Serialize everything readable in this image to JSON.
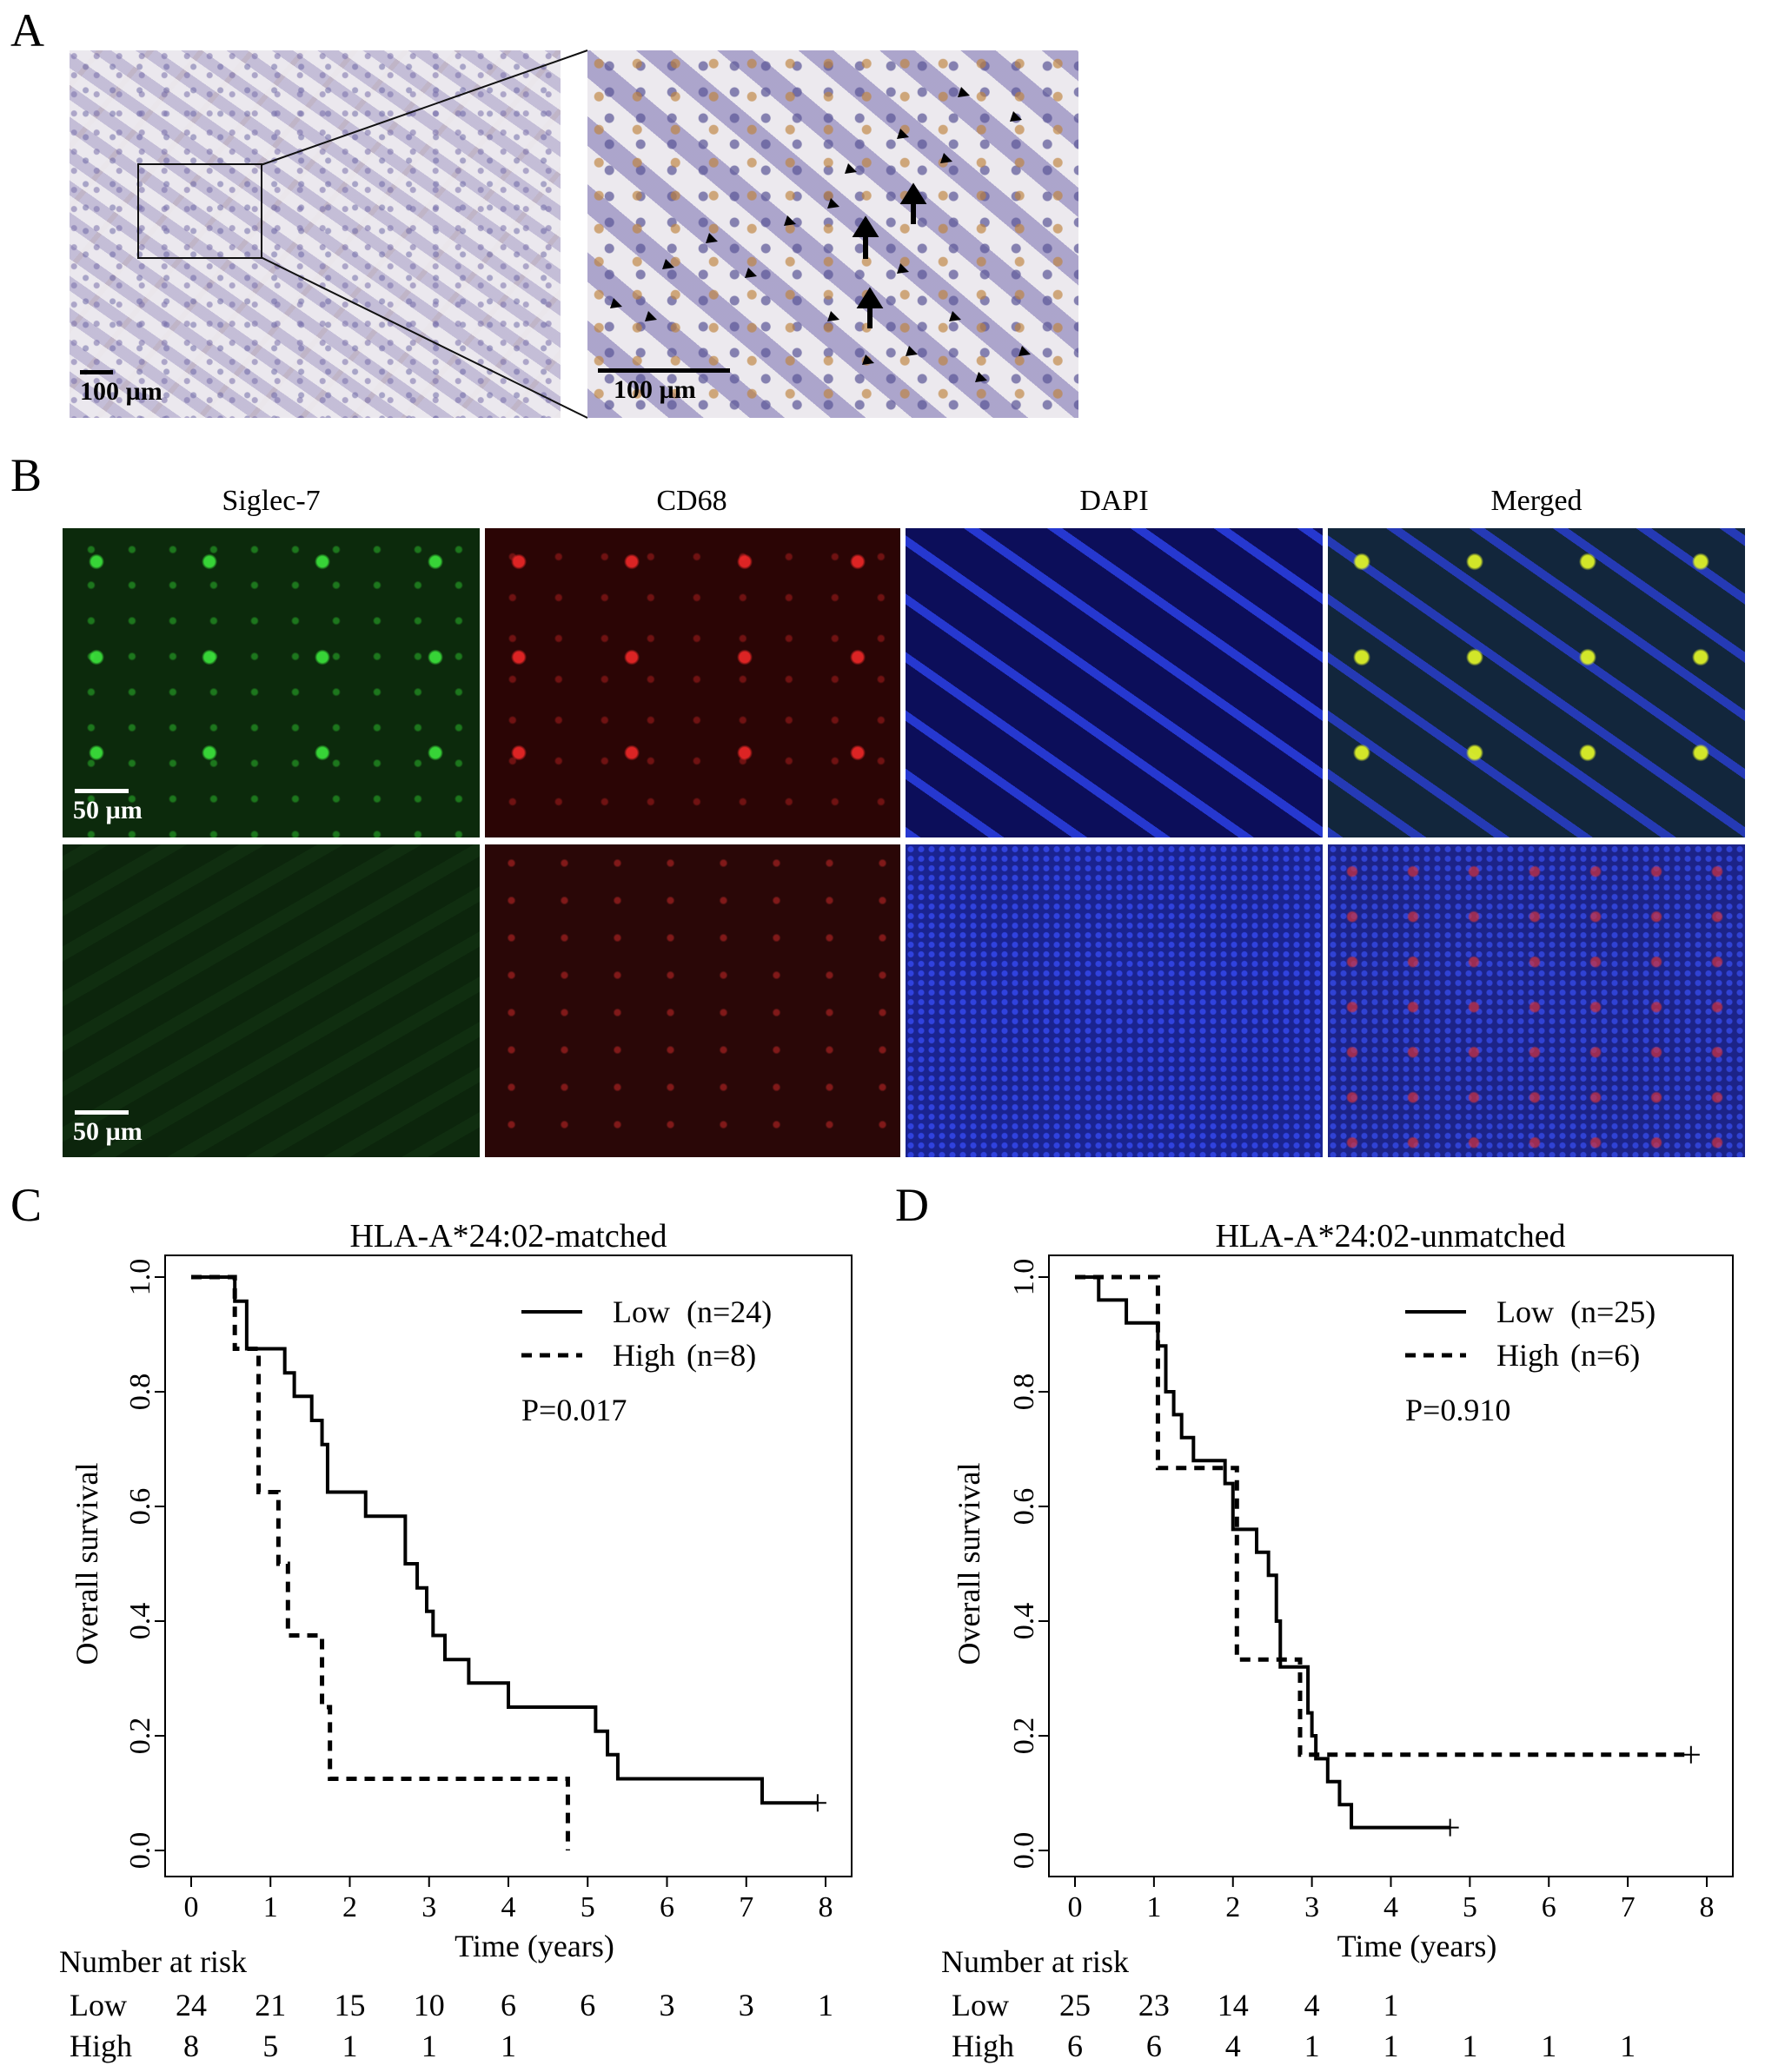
{
  "panels": {
    "a": {
      "letter": "A",
      "scale_left": "100 µm",
      "scale_right": "100 µm"
    },
    "b": {
      "letter": "B",
      "columns": [
        "Siglec-7",
        "CD68",
        "DAPI",
        "Merged"
      ],
      "scale_top": "50 µm",
      "scale_bottom": "50 µm"
    }
  },
  "chart_data": [
    {
      "panel": "C",
      "type": "line",
      "title": "HLA-A*24:02-matched",
      "xlabel": "Time (years)",
      "ylabel": "Overall survival",
      "xlim": [
        0,
        8
      ],
      "ylim": [
        0,
        1
      ],
      "xticks": [
        "0",
        "1",
        "2",
        "3",
        "4",
        "5",
        "6",
        "7",
        "8"
      ],
      "yticks": [
        "0.0",
        "0.2",
        "0.4",
        "0.6",
        "0.8",
        "1.0"
      ],
      "pvalue": "P=0.017",
      "series": [
        {
          "name": "Low",
          "legend_n": "(n=24)",
          "style": "solid",
          "x": [
            0,
            0.55,
            0.7,
            1.18,
            1.3,
            1.52,
            1.65,
            1.72,
            2.2,
            2.7,
            2.85,
            2.97,
            3.05,
            3.2,
            3.5,
            4.0,
            5.1,
            5.25,
            5.38,
            7.2,
            7.9
          ],
          "y": [
            1.0,
            0.958,
            0.875,
            0.833,
            0.792,
            0.75,
            0.708,
            0.625,
            0.583,
            0.5,
            0.458,
            0.417,
            0.375,
            0.333,
            0.292,
            0.25,
            0.208,
            0.167,
            0.125,
            0.083,
            0.083
          ],
          "censor": [
            {
              "x": 7.9,
              "y": 0.083
            }
          ]
        },
        {
          "name": "High",
          "legend_n": "(n=8)",
          "style": "dashed",
          "x": [
            0,
            0.55,
            0.62,
            0.85,
            1.1,
            1.22,
            1.65,
            1.75,
            4.75
          ],
          "y": [
            1.0,
            0.875,
            0.875,
            0.625,
            0.5,
            0.375,
            0.25,
            0.125,
            0.0
          ]
        }
      ],
      "risk_table": {
        "header": "Number at risk",
        "times": [
          0,
          1,
          2,
          3,
          4,
          5,
          6,
          7,
          8
        ],
        "rows": [
          {
            "label": "Low",
            "values": [
              "24",
              "21",
              "15",
              "10",
              "6",
              "6",
              "3",
              "3",
              "1"
            ]
          },
          {
            "label": "High",
            "values": [
              "8",
              "5",
              "1",
              "1",
              "1"
            ]
          }
        ]
      }
    },
    {
      "panel": "D",
      "type": "line",
      "title": "HLA-A*24:02-unmatched",
      "xlabel": "Time (years)",
      "ylabel": "Overall survival",
      "xlim": [
        0,
        8
      ],
      "ylim": [
        0,
        1
      ],
      "xticks": [
        "0",
        "1",
        "2",
        "3",
        "4",
        "5",
        "6",
        "7",
        "8"
      ],
      "yticks": [
        "0.0",
        "0.2",
        "0.4",
        "0.6",
        "0.8",
        "1.0"
      ],
      "pvalue": "P=0.910",
      "series": [
        {
          "name": "Low",
          "legend_n": "(n=25)",
          "style": "solid",
          "x": [
            0,
            0.3,
            0.65,
            1.05,
            1.15,
            1.25,
            1.35,
            1.5,
            1.9,
            2.0,
            2.1,
            2.3,
            2.45,
            2.55,
            2.6,
            2.95,
            3.0,
            3.05,
            3.2,
            3.35,
            3.5,
            4.75
          ],
          "y": [
            1.0,
            0.96,
            0.92,
            0.88,
            0.8,
            0.76,
            0.72,
            0.68,
            0.64,
            0.56,
            0.56,
            0.52,
            0.48,
            0.4,
            0.32,
            0.24,
            0.2,
            0.16,
            0.12,
            0.08,
            0.04,
            0.04
          ],
          "censor": [
            {
              "x": 4.75,
              "y": 0.04
            }
          ]
        },
        {
          "name": "High",
          "legend_n": "(n=6)",
          "style": "dashed",
          "x": [
            0,
            1.05,
            2.05,
            2.85,
            7.8
          ],
          "y": [
            1.0,
            0.667,
            0.333,
            0.167,
            0.167
          ],
          "censor": [
            {
              "x": 7.8,
              "y": 0.167
            }
          ]
        }
      ],
      "risk_table": {
        "header": "Number at risk",
        "times": [
          0,
          1,
          2,
          3,
          4,
          5,
          6,
          7,
          8
        ],
        "rows": [
          {
            "label": "Low",
            "values": [
              "25",
              "23",
              "14",
              "4",
              "1"
            ]
          },
          {
            "label": "High",
            "values": [
              "6",
              "6",
              "4",
              "1",
              "1",
              "1",
              "1",
              "1"
            ]
          }
        ]
      }
    }
  ]
}
